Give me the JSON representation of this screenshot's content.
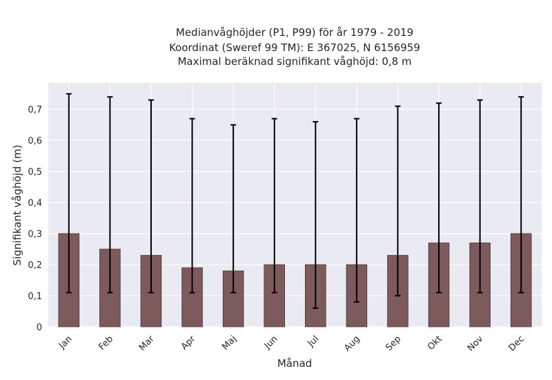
{
  "chart_data": {
    "type": "bar",
    "title_lines": [
      "Medianvåghöjder (P1, P99) för år 1979 - 2019",
      "Koordinat (Sweref 99 TM): E 367025, N 6156959",
      "Maximal beräknad signifikant våghöjd: 0,8 m"
    ],
    "xlabel": "Månad",
    "ylabel": "Signifikant våghöjd (m)",
    "categories": [
      "Jan",
      "Feb",
      "Mar",
      "Apr",
      "Maj",
      "Jun",
      "Jul",
      "Aug",
      "Sep",
      "Okt",
      "Nov",
      "Dec"
    ],
    "series": [
      {
        "values": [
          0.3,
          0.25,
          0.23,
          0.19,
          0.18,
          0.2,
          0.2,
          0.2,
          0.23,
          0.27,
          0.27,
          0.3
        ],
        "error_low": [
          0.11,
          0.11,
          0.11,
          0.11,
          0.11,
          0.11,
          0.06,
          0.08,
          0.1,
          0.11,
          0.11,
          0.11
        ],
        "error_high": [
          0.75,
          0.74,
          0.73,
          0.67,
          0.65,
          0.67,
          0.66,
          0.67,
          0.71,
          0.72,
          0.73,
          0.74
        ]
      }
    ],
    "ylim": [
      0,
      0.785
    ],
    "yticks": [
      0,
      0.1,
      0.2,
      0.3,
      0.4,
      0.5,
      0.6,
      0.7
    ],
    "ytick_labels": [
      "0",
      "0,1",
      "0,2",
      "0,3",
      "0,4",
      "0,5",
      "0,6",
      "0,7"
    ],
    "grid": true,
    "colors": {
      "bar": "#7d5a5c",
      "bar_edge": "#4a3536",
      "error": "#000000",
      "plot_bg": "#eaeaf2",
      "grid": "#ffffff"
    }
  }
}
